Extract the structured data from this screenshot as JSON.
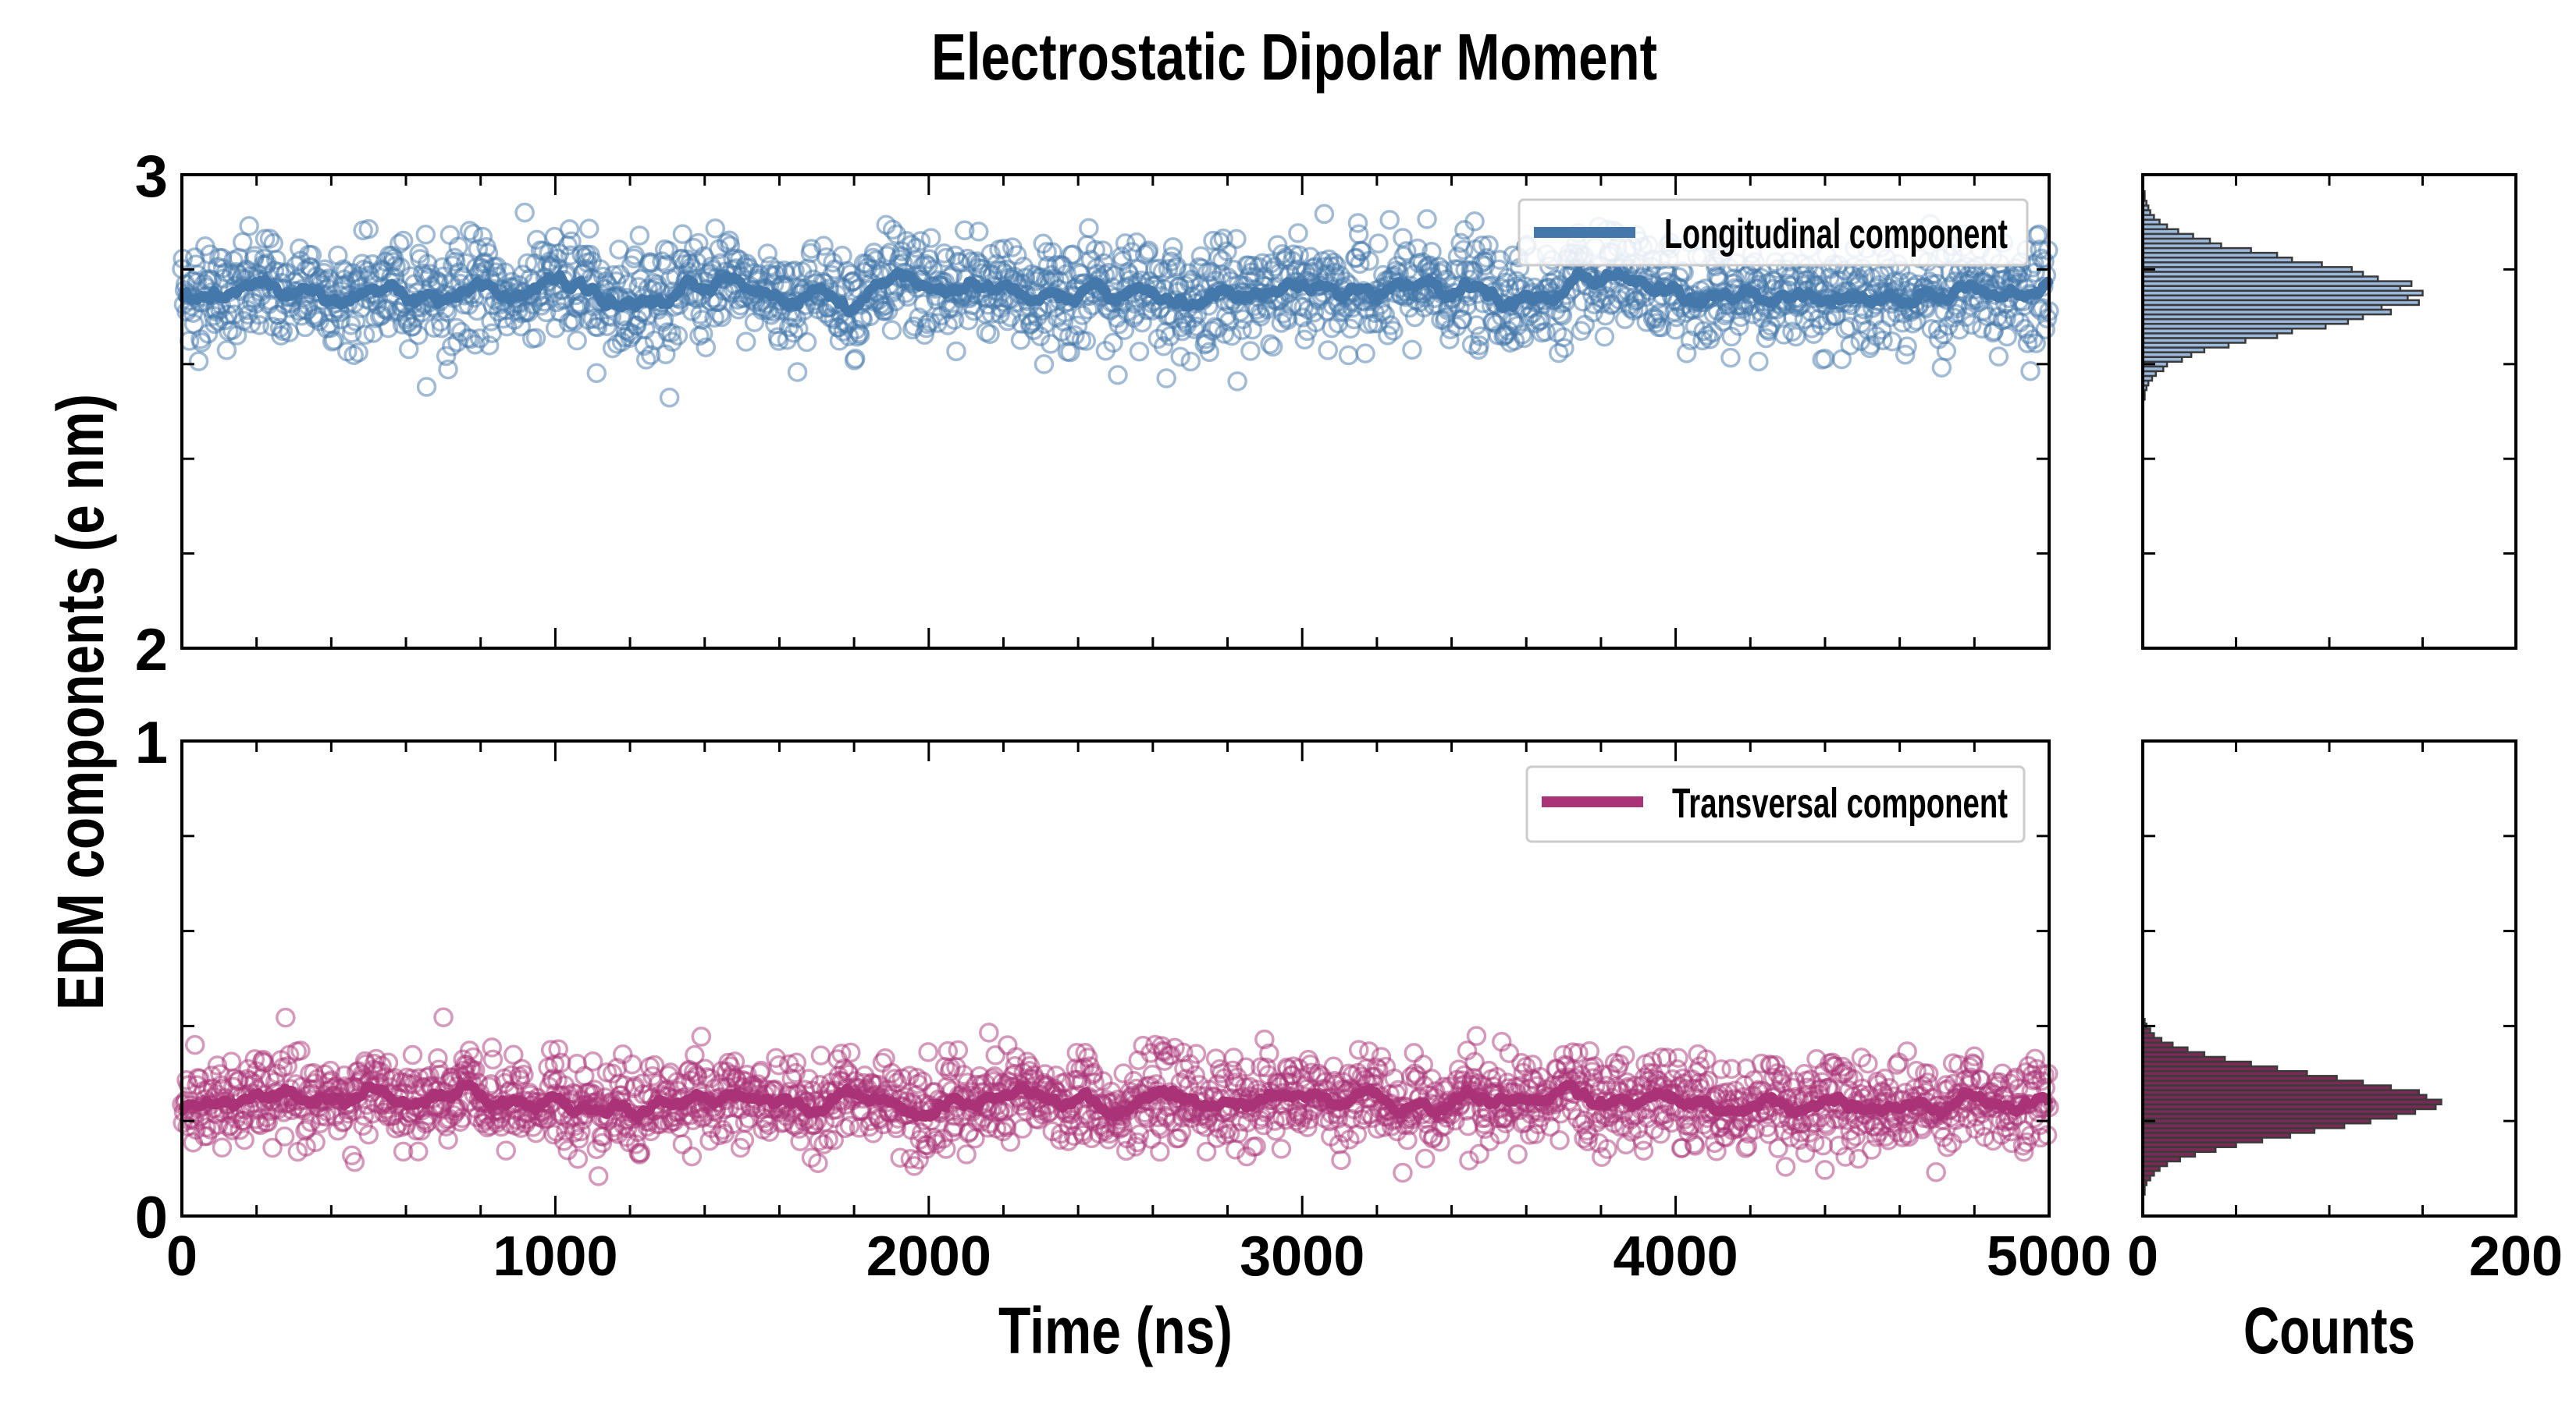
{
  "title": "Electrostatic Dipolar Moment",
  "colors": {
    "longitudinal": "#4477aa",
    "transversal": "#aa3377",
    "hist_top_fill": "#9bb9dc",
    "hist_bottom_fill": "#7a2a55",
    "hist_edge": "#3a3a3a"
  },
  "chart_data": [
    {
      "type": "scatter",
      "panel": "top",
      "series": [
        {
          "name": "Longitudinal component",
          "mean": 2.75,
          "std": 0.065,
          "n_points": 2000,
          "smoothed_line": true
        }
      ],
      "xlabel": "Time (ns)",
      "ylabel": "EDM components (e nm)",
      "xlim": [
        0,
        5000
      ],
      "ylim": [
        2,
        3
      ],
      "yticks": [
        "2",
        "3"
      ],
      "legend": "top-right"
    },
    {
      "type": "scatter",
      "panel": "bottom",
      "series": [
        {
          "name": "Transversal component",
          "mean": 0.24,
          "std": 0.055,
          "n_points": 2000,
          "smoothed_line": true
        }
      ],
      "xlabel": "Time (ns)",
      "ylabel": "EDM components (e nm)",
      "xlim": [
        0,
        5000
      ],
      "ylim": [
        0,
        1
      ],
      "xticks": [
        "0",
        "1000",
        "2000",
        "3000",
        "4000",
        "5000"
      ],
      "yticks": [
        "0",
        "1"
      ],
      "legend": "top-right"
    },
    {
      "type": "bar",
      "orientation": "horizontal",
      "panel": "top-histogram",
      "bin_width": 0.01,
      "bin_centers": [
        2.53,
        2.54,
        2.55,
        2.56,
        2.57,
        2.58,
        2.59,
        2.6,
        2.61,
        2.62,
        2.63,
        2.64,
        2.65,
        2.66,
        2.67,
        2.68,
        2.69,
        2.7,
        2.71,
        2.72,
        2.73,
        2.74,
        2.75,
        2.76,
        2.77,
        2.78,
        2.79,
        2.8,
        2.81,
        2.82,
        2.83,
        2.84,
        2.85,
        2.86,
        2.87,
        2.88,
        2.89,
        2.9,
        2.91,
        2.92,
        2.93,
        2.94,
        2.95,
        2.96
      ],
      "values": [
        1,
        1,
        2,
        3,
        5,
        7,
        11,
        13,
        21,
        26,
        33,
        46,
        55,
        72,
        80,
        98,
        110,
        118,
        133,
        128,
        148,
        142,
        150,
        138,
        144,
        126,
        118,
        112,
        96,
        80,
        72,
        58,
        42,
        36,
        27,
        19,
        13,
        9,
        6,
        4,
        3,
        2,
        1,
        1
      ],
      "xlim": [
        0,
        200
      ],
      "ylim": [
        2,
        3
      ]
    },
    {
      "type": "bar",
      "orientation": "horizontal",
      "panel": "bottom-histogram",
      "bin_width": 0.01,
      "bin_centers": [
        0.05,
        0.06,
        0.07,
        0.08,
        0.09,
        0.1,
        0.11,
        0.12,
        0.13,
        0.14,
        0.15,
        0.16,
        0.17,
        0.18,
        0.19,
        0.2,
        0.21,
        0.22,
        0.23,
        0.24,
        0.25,
        0.26,
        0.27,
        0.28,
        0.29,
        0.3,
        0.31,
        0.32,
        0.33,
        0.34,
        0.35,
        0.36,
        0.37,
        0.38,
        0.39,
        0.4,
        0.41
      ],
      "values": [
        1,
        1,
        2,
        4,
        6,
        9,
        13,
        20,
        28,
        39,
        50,
        64,
        79,
        92,
        108,
        122,
        136,
        146,
        157,
        160,
        152,
        148,
        133,
        118,
        104,
        88,
        72,
        58,
        44,
        33,
        24,
        16,
        10,
        6,
        4,
        2,
        1
      ],
      "xlabel": "Counts",
      "xlim": [
        0,
        200
      ],
      "ylim": [
        0,
        1
      ],
      "xticks": [
        "0",
        "200"
      ]
    }
  ]
}
